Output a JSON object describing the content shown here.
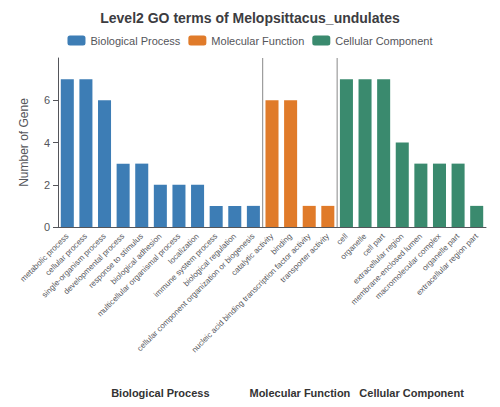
{
  "chart_data": {
    "type": "bar",
    "title": "Level2 GO terms of Melopsittacus_undulates",
    "ylabel": "Number of Gene",
    "categories": [
      "metabolic process",
      "cellular process",
      "single-organism process",
      "developmental process",
      "response to stimulus",
      "biological adhesion",
      "multicellular organismal process",
      "localization",
      "immune system process",
      "biological regulation",
      "cellular component organization or biogenesis",
      "catalytic activity",
      "binding",
      "nucleic acid binding transcription factor activity",
      "transporter activity",
      "cell",
      "organelle",
      "cell part",
      "extracellular region",
      "membrane-enclosed lumen",
      "macromolecular complex",
      "organelle part",
      "extracellular region part"
    ],
    "series": [
      {
        "name": "Biological Process",
        "color": "#3d7db5",
        "values": [
          7,
          7,
          6,
          3,
          3,
          2,
          2,
          2,
          1,
          1,
          1,
          null,
          null,
          null,
          null,
          null,
          null,
          null,
          null,
          null,
          null,
          null,
          null
        ]
      },
      {
        "name": "Molecular Function",
        "color": "#e07b2a",
        "values": [
          null,
          null,
          null,
          null,
          null,
          null,
          null,
          null,
          null,
          null,
          null,
          6,
          6,
          1,
          1,
          null,
          null,
          null,
          null,
          null,
          null,
          null,
          null
        ]
      },
      {
        "name": "Cellular Component",
        "color": "#3a8a6e",
        "values": [
          null,
          null,
          null,
          null,
          null,
          null,
          null,
          null,
          null,
          null,
          null,
          null,
          null,
          null,
          null,
          7,
          7,
          7,
          4,
          3,
          3,
          3,
          1
        ]
      }
    ],
    "annotations": [
      "Biological Process",
      "Molecular Function",
      "Cellular Component"
    ],
    "ylim": [
      0,
      8
    ],
    "yticks": [
      0,
      2,
      4,
      6
    ],
    "grid": false,
    "legend": "top"
  }
}
